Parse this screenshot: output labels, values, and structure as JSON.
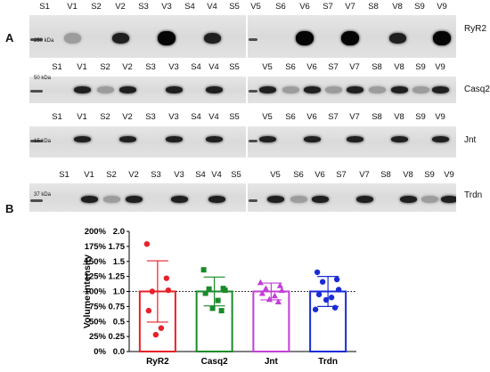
{
  "panels": {
    "a": "A",
    "b": "B"
  },
  "blots": [
    {
      "protein": "RyR2",
      "kda": "250 kDa",
      "left_lanes": [
        "S1",
        "V1",
        "S2",
        "V2",
        "S3",
        "V3",
        "S4",
        "V4",
        "S5"
      ],
      "right_lanes": [
        "V5",
        "S6",
        "V6",
        "S7",
        "V7",
        "S8",
        "V8",
        "S9",
        "V9"
      ]
    },
    {
      "protein": "Casq2",
      "kda": "50 kDa",
      "left_lanes": [
        "S1",
        "V1",
        "S2",
        "V2",
        "S3",
        "V3",
        "S4",
        "V4",
        "S5"
      ],
      "right_lanes": [
        "V5",
        "S6",
        "V6",
        "S7",
        "V7",
        "S8",
        "V8",
        "S9",
        "V9"
      ]
    },
    {
      "protein": "Jnt",
      "kda": "15 kDa",
      "left_lanes": [
        "S1",
        "V1",
        "S2",
        "V2",
        "S3",
        "V3",
        "S4",
        "V4",
        "S5"
      ],
      "right_lanes": [
        "V5",
        "S6",
        "V6",
        "S7",
        "V7",
        "S8",
        "V8",
        "S9",
        "V9"
      ]
    },
    {
      "protein": "Trdn",
      "kda": "37 kDa",
      "left_lanes": [
        "S1",
        "V1",
        "S2",
        "V2",
        "S3",
        "V3",
        "S4",
        "V4",
        "S5"
      ],
      "right_lanes": [
        "V5",
        "S6",
        "V6",
        "S7",
        "V7",
        "S8",
        "V8",
        "S9",
        "V9"
      ]
    }
  ],
  "chart_data": {
    "type": "bar",
    "ylabel": "Volume intensity",
    "ylim": [
      0,
      2.0
    ],
    "yticks": [
      "0.0",
      "0.25",
      "0.5",
      "0.75",
      "1.0",
      "1.25",
      "1.5",
      "1.75",
      "2.0"
    ],
    "yticks_pct": [
      "0%",
      "25%",
      "50%",
      "75%",
      "100%",
      "125%",
      "150%",
      "175%",
      "200%"
    ],
    "reference_line": 1.0,
    "categories": [
      "RyR2",
      "Casq2",
      "Jnt",
      "Trdn"
    ],
    "colors": [
      "#e8202a",
      "#1a8a2a",
      "#c23fd6",
      "#1a2bd6"
    ],
    "markers": [
      "circle",
      "square",
      "triangle",
      "circle"
    ],
    "values": [
      1.0,
      1.0,
      1.0,
      1.0
    ],
    "sd": [
      0.51,
      0.24,
      0.14,
      0.25
    ],
    "points": [
      [
        1.79,
        1.22,
        1.0,
        1.02,
        0.68,
        0.39,
        0.28
      ],
      [
        1.36,
        1.05,
        1.04,
        1.02,
        0.97,
        0.85,
        0.72,
        0.68
      ],
      [
        1.15,
        1.1,
        1.05,
        1.02,
        0.97,
        0.93,
        0.87,
        0.83
      ],
      [
        1.32,
        1.2,
        1.16,
        1.03,
        0.95,
        0.9,
        0.86,
        0.73,
        0.7
      ]
    ]
  }
}
